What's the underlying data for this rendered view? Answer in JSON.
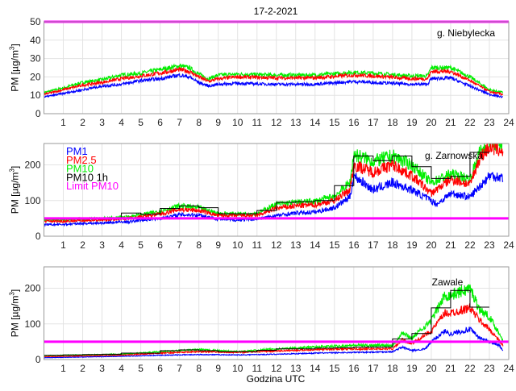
{
  "title": "17-2-2021",
  "xlabel": "Godzina UTC",
  "colors": {
    "PM1": "#0000ff",
    "PM2.5": "#ff0000",
    "PM10": "#00ee00",
    "PM10 1h": "#000000",
    "Limit PM10": "#ff00ff"
  },
  "legend": [
    "PM1",
    "PM2.5",
    "PM10",
    "PM10 1h",
    "Limit PM10"
  ],
  "chart_data": [
    {
      "type": "line",
      "station": "g. Niebylecka",
      "ylabel": "PM [µg/m3]",
      "xlim": [
        0,
        24
      ],
      "ylim": [
        0,
        50
      ],
      "xticks": [
        1,
        2,
        3,
        4,
        5,
        6,
        7,
        8,
        9,
        10,
        11,
        12,
        13,
        14,
        15,
        16,
        17,
        18,
        19,
        20,
        21,
        22,
        23,
        24
      ],
      "yticks": [
        0,
        10,
        20,
        30,
        40,
        50
      ],
      "limit": 50,
      "series": [
        {
          "name": "PM1",
          "x": [
            0,
            1,
            2,
            3,
            4,
            5,
            6,
            7,
            7.5,
            8,
            8.5,
            9,
            10,
            12,
            14,
            16,
            17,
            19,
            19.8,
            20,
            21,
            22,
            23,
            23.7
          ],
          "y": [
            9,
            11,
            13,
            15,
            16,
            18,
            19,
            21,
            20,
            17,
            15,
            16,
            16.5,
            16,
            16,
            17.5,
            17,
            16,
            16,
            19,
            19.5,
            15,
            10.5,
            9
          ]
        },
        {
          "name": "PM2.5",
          "x": [
            0,
            1,
            2,
            3,
            4,
            5,
            6,
            7,
            7.5,
            8,
            8.5,
            9,
            10,
            12,
            14,
            16,
            17,
            19,
            19.8,
            20,
            21,
            22,
            23,
            23.7
          ],
          "y": [
            10.5,
            13,
            15.5,
            17,
            19,
            20.5,
            22,
            24,
            23,
            20,
            17.5,
            19,
            20,
            19.5,
            19.5,
            21,
            20.5,
            19,
            19,
            23,
            23,
            18,
            12,
            10.5
          ]
        },
        {
          "name": "PM10",
          "x": [
            0,
            1,
            2,
            3,
            4,
            5,
            6,
            7,
            7.5,
            8,
            8.5,
            9,
            10,
            12,
            14,
            16,
            17,
            19,
            19.8,
            20,
            21,
            22,
            23,
            23.7
          ],
          "y": [
            11.5,
            14,
            17,
            18.5,
            21,
            22,
            24,
            26,
            25,
            21.5,
            19,
            21,
            21.5,
            21,
            21,
            22.5,
            22,
            20.5,
            20.5,
            25,
            25,
            20,
            13,
            11.5
          ]
        }
      ],
      "pm10_1h": []
    },
    {
      "type": "line",
      "station": "g. Zarnowska",
      "ylabel": "PM [µg/m3]",
      "xlim": [
        0,
        24
      ],
      "ylim": [
        0,
        260
      ],
      "xticks": [
        1,
        2,
        3,
        4,
        5,
        6,
        7,
        8,
        9,
        10,
        11,
        12,
        13,
        14,
        15,
        16,
        17,
        18,
        19,
        20,
        21,
        22,
        23,
        24
      ],
      "yticks": [
        0,
        100,
        200
      ],
      "limit": 50,
      "series": [
        {
          "name": "PM1",
          "x": [
            0,
            1,
            2,
            3,
            4,
            4.4,
            5,
            6,
            7,
            8,
            9,
            10,
            11,
            12,
            13,
            14,
            15,
            15.8,
            16,
            17,
            18,
            19,
            20,
            20.3,
            21,
            22,
            23,
            23.7
          ],
          "y": [
            32,
            33,
            36,
            37,
            40,
            40,
            45,
            50,
            60,
            60,
            48,
            45,
            48,
            58,
            65,
            68,
            80,
            110,
            170,
            130,
            150,
            130,
            100,
            90,
            120,
            110,
            170,
            165
          ]
        },
        {
          "name": "PM2.5",
          "x": [
            0,
            1,
            2,
            3,
            4,
            5,
            6,
            7,
            8,
            9,
            10,
            11,
            12,
            13,
            14,
            15,
            15.8,
            16,
            17,
            18,
            19,
            20,
            21,
            22,
            22.5,
            23,
            23.7
          ],
          "y": [
            42,
            42,
            44,
            45,
            48,
            55,
            62,
            75,
            72,
            58,
            58,
            58,
            78,
            85,
            88,
            100,
            130,
            200,
            180,
            200,
            170,
            120,
            160,
            145,
            220,
            250,
            240
          ]
        },
        {
          "name": "PM10",
          "x": [
            0,
            1,
            2,
            3,
            4,
            5,
            6,
            7,
            8,
            9,
            10,
            11,
            12,
            13,
            14,
            15,
            15.8,
            16,
            17,
            18,
            19,
            20,
            21,
            22,
            22.5,
            23,
            23.7
          ],
          "y": [
            46,
            46,
            48,
            50,
            52,
            60,
            70,
            85,
            80,
            64,
            63,
            64,
            90,
            95,
            98,
            112,
            150,
            230,
            210,
            225,
            200,
            150,
            175,
            160,
            235,
            265,
            260
          ]
        }
      ],
      "pm10_1h": [
        48,
        48,
        48,
        48,
        65,
        62,
        78,
        85,
        80,
        63,
        63,
        72,
        95,
        97,
        100,
        142,
        225,
        212,
        225,
        195,
        162,
        168,
        235
      ]
    },
    {
      "type": "line",
      "station": "Zawale",
      "ylabel": "PM [µg/m3]",
      "xlim": [
        0,
        24
      ],
      "ylim": [
        0,
        260
      ],
      "xticks": [
        1,
        2,
        3,
        4,
        5,
        6,
        7,
        8,
        9,
        10,
        11,
        12,
        13,
        14,
        15,
        16,
        17,
        18,
        19,
        20,
        21,
        22,
        23,
        24
      ],
      "yticks": [
        0,
        100,
        200
      ],
      "limit": 50,
      "series": [
        {
          "name": "PM1",
          "x": [
            0,
            4,
            6,
            8,
            10,
            12,
            14,
            16,
            18,
            18.5,
            19,
            19.7,
            20,
            20.7,
            21,
            22,
            22.5,
            23,
            23.5,
            23.7
          ],
          "y": [
            5,
            9,
            12,
            14,
            13,
            15,
            18,
            20,
            22,
            35,
            25,
            30,
            50,
            80,
            72,
            85,
            60,
            50,
            40,
            25
          ]
        },
        {
          "name": "PM2.5",
          "x": [
            0,
            4,
            6,
            8,
            10,
            12,
            14,
            16,
            18,
            18.5,
            19,
            20,
            20.7,
            21,
            22,
            22.5,
            23,
            23.7
          ],
          "y": [
            8,
            12,
            18,
            22,
            20,
            24,
            28,
            30,
            30,
            55,
            45,
            80,
            130,
            130,
            145,
            110,
            85,
            40
          ]
        },
        {
          "name": "PM10",
          "x": [
            0,
            4,
            6,
            8,
            10,
            12,
            14,
            16,
            18,
            18.5,
            19,
            20,
            20.7,
            21,
            22,
            22.5,
            23,
            23.7
          ],
          "y": [
            11,
            15,
            22,
            28,
            22,
            30,
            35,
            40,
            40,
            75,
            60,
            110,
            180,
            180,
            200,
            140,
            120,
            55
          ]
        }
      ],
      "pm10_1h": [
        12,
        13,
        14,
        15,
        18,
        18,
        25,
        27,
        25,
        22,
        22,
        26,
        30,
        30,
        32,
        33,
        35,
        35,
        58,
        73,
        145,
        194,
        147
      ]
    }
  ]
}
